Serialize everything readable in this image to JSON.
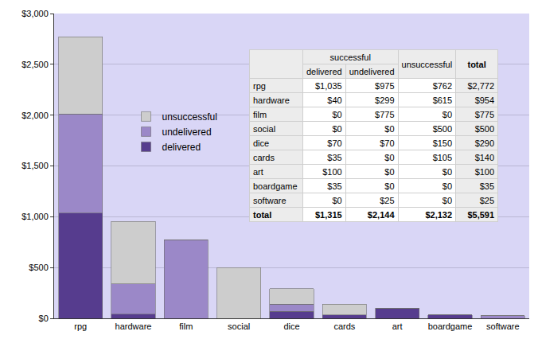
{
  "chart_data": {
    "type": "bar",
    "stacked": true,
    "categories": [
      "rpg",
      "hardware",
      "film",
      "social",
      "dice",
      "cards",
      "art",
      "boardgame",
      "software"
    ],
    "series": [
      {
        "name": "delivered",
        "color": "#563c8e",
        "values": [
          1035,
          40,
          0,
          0,
          70,
          35,
          100,
          35,
          0
        ]
      },
      {
        "name": "undelivered",
        "color": "#9b88c8",
        "values": [
          975,
          299,
          775,
          0,
          70,
          0,
          0,
          0,
          25
        ]
      },
      {
        "name": "unsuccessful",
        "color": "#cdcdcd",
        "values": [
          762,
          615,
          0,
          500,
          150,
          105,
          0,
          0,
          0
        ]
      }
    ],
    "ylim": [
      0,
      3000
    ],
    "yticks": [
      {
        "value": 0,
        "label": "$0"
      },
      {
        "value": 500,
        "label": "$500"
      },
      {
        "value": 1000,
        "label": "$1,000"
      },
      {
        "value": 1500,
        "label": "$1,500"
      },
      {
        "value": 2000,
        "label": "$2,000"
      },
      {
        "value": 2500,
        "label": "$2,500"
      },
      {
        "value": 3000,
        "label": "$3,000"
      }
    ],
    "grid": true,
    "legend": "upper left"
  },
  "table": {
    "header": [
      "successful",
      "unsuccessful",
      "total"
    ],
    "subheader": [
      "delivered",
      "undelivered"
    ],
    "rows": [
      [
        "rpg",
        "$1,035",
        "$975",
        "$762",
        "$2,772"
      ],
      [
        "hardware",
        "$40",
        "$299",
        "$615",
        "$954"
      ],
      [
        "film",
        "$0",
        "$775",
        "$0",
        "$775"
      ],
      [
        "social",
        "$0",
        "$0",
        "$500",
        "$500"
      ],
      [
        "dice",
        "$70",
        "$70",
        "$150",
        "$290"
      ],
      [
        "cards",
        "$35",
        "$0",
        "$105",
        "$140"
      ],
      [
        "art",
        "$100",
        "$0",
        "$0",
        "$100"
      ],
      [
        "boardgame",
        "$35",
        "$0",
        "$0",
        "$35"
      ],
      [
        "software",
        "$0",
        "$25",
        "$0",
        "$25"
      ]
    ],
    "total": [
      "total",
      "$1,315",
      "$2,144",
      "$2,132",
      "$5,591"
    ]
  }
}
